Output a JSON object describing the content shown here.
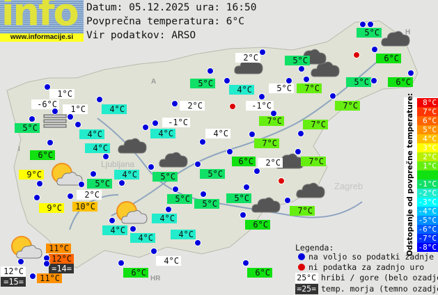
{
  "header": {
    "logo_text": "info",
    "logo_url": "www.informacije.si",
    "date_line": "Datum: 05.12.2025 ura: 16:50",
    "avg_line": "Povprečna temperatura: 6°C",
    "source_line": "Vir podatkov: ARSO"
  },
  "map_labels": {
    "zagreb": "Zagreb",
    "ljubljana": "Ljubljana",
    "hr": "HR",
    "a": "A",
    "i": "I",
    "h": "H"
  },
  "average_temperature": 6,
  "stations": [
    {
      "temp": "5°C",
      "value": 5,
      "type": "normal"
    },
    {
      "temp": "6°C",
      "value": 6,
      "type": "normal"
    },
    {
      "temp": "6°C",
      "value": 6,
      "type": "normal"
    },
    {
      "temp": "5°C",
      "value": 5,
      "type": "normal"
    },
    {
      "temp": "5°C",
      "value": 5,
      "type": "normal"
    },
    {
      "temp": "5°C",
      "value": 5,
      "type": "hill"
    },
    {
      "temp": "7°C",
      "value": 7,
      "type": "normal"
    },
    {
      "temp": "7°C",
      "value": 7,
      "type": "normal"
    },
    {
      "temp": "7°C",
      "value": 7,
      "type": "normal"
    },
    {
      "temp": "2°C",
      "value": 2,
      "type": "hill"
    },
    {
      "temp": "5°C",
      "value": 5,
      "type": "normal"
    },
    {
      "temp": "4°C",
      "value": 4,
      "type": "normal"
    },
    {
      "temp": "-1°C",
      "value": -1,
      "type": "hill"
    },
    {
      "temp": "2°C",
      "value": 2,
      "type": "hill"
    },
    {
      "temp": "-1°C",
      "value": -1,
      "type": "hill"
    },
    {
      "temp": "4°C",
      "value": 4,
      "type": "normal"
    },
    {
      "temp": "4°C",
      "value": 4,
      "type": "hill"
    },
    {
      "temp": "7°C",
      "value": 7,
      "type": "normal"
    },
    {
      "temp": "7°C",
      "value": 7,
      "type": "normal"
    },
    {
      "temp": "6°C",
      "value": 6,
      "type": "normal"
    },
    {
      "temp": "2°C",
      "value": 2,
      "type": "hill"
    },
    {
      "temp": "7°C",
      "value": 7,
      "type": "normal"
    },
    {
      "temp": "5°C",
      "value": 5,
      "type": "normal"
    },
    {
      "temp": "4°C",
      "value": 4,
      "type": "normal"
    },
    {
      "temp": "5°C",
      "value": 5,
      "type": "normal"
    },
    {
      "temp": "5°C",
      "value": 5,
      "type": "normal"
    },
    {
      "temp": "5°C",
      "value": 5,
      "type": "normal"
    },
    {
      "temp": "5°C",
      "value": 5,
      "type": "normal"
    },
    {
      "temp": "5°C",
      "value": 5,
      "type": "normal"
    },
    {
      "temp": "7°C",
      "value": 7,
      "type": "normal"
    },
    {
      "temp": "4°C",
      "value": 4,
      "type": "normal"
    },
    {
      "temp": "6°C",
      "value": 6,
      "type": "normal"
    },
    {
      "temp": "4°C",
      "value": 4,
      "type": "normal"
    },
    {
      "temp": "4°C",
      "value": 4,
      "type": "normal"
    },
    {
      "temp": "4°C",
      "value": 4,
      "type": "normal"
    },
    {
      "temp": "4°C",
      "value": 4,
      "type": "hill"
    },
    {
      "temp": "6°C",
      "value": 6,
      "type": "normal"
    },
    {
      "temp": "6°C",
      "value": 6,
      "type": "normal"
    },
    {
      "temp": "1°C",
      "value": 1,
      "type": "hill"
    },
    {
      "temp": "-6°C",
      "value": -6,
      "type": "hill"
    },
    {
      "temp": "1°C",
      "value": 1,
      "type": "hill"
    },
    {
      "temp": "5°C",
      "value": 5,
      "type": "normal"
    },
    {
      "temp": "4°C",
      "value": 4,
      "type": "normal"
    },
    {
      "temp": "4°C",
      "value": 4,
      "type": "normal"
    },
    {
      "temp": "4°C",
      "value": 4,
      "type": "normal"
    },
    {
      "temp": "6°C",
      "value": 6,
      "type": "normal"
    },
    {
      "temp": "9°C",
      "value": 9,
      "type": "normal"
    },
    {
      "temp": "9°C",
      "value": 9,
      "type": "normal"
    },
    {
      "temp": "10°C",
      "value": 10,
      "type": "normal"
    },
    {
      "temp": "2°C",
      "value": 2,
      "type": "hill"
    },
    {
      "temp": "11°C",
      "value": 11,
      "type": "normal"
    },
    {
      "temp": "12°C",
      "value": 12,
      "type": "normal"
    },
    {
      "temp": "=14=",
      "value": 14,
      "type": "sea"
    },
    {
      "temp": "12°C",
      "value": 12,
      "type": "hill"
    },
    {
      "temp": "=15=",
      "value": 15,
      "type": "sea"
    },
    {
      "temp": "11°C",
      "value": 11,
      "type": "normal"
    }
  ],
  "scale": {
    "title": "Odstopanje od povprečne temperature:",
    "rows": [
      {
        "label": "8°C",
        "color": "#f00000"
      },
      {
        "label": "7°C",
        "color": "#ff3600"
      },
      {
        "label": "6°C",
        "color": "#ff6400"
      },
      {
        "label": "5°C",
        "color": "#ff9000"
      },
      {
        "label": "4°C",
        "color": "#ffc000"
      },
      {
        "label": "3°C",
        "color": "#ffff00"
      },
      {
        "label": "2°C",
        "color": "#b8f000"
      },
      {
        "label": "1°C",
        "color": "#66ee11"
      },
      {
        "label": "",
        "color": "#11e011"
      },
      {
        "label": "-1°C",
        "color": "#11e066"
      },
      {
        "label": "-2°C",
        "color": "#22eccc"
      },
      {
        "label": "-3°C",
        "color": "#00ffff"
      },
      {
        "label": "-4°C",
        "color": "#00c4ff"
      },
      {
        "label": "-5°C",
        "color": "#0090ff"
      },
      {
        "label": "-6°C",
        "color": "#0060ff"
      },
      {
        "label": "-7°C",
        "color": "#0030ff"
      },
      {
        "label": "-8°C",
        "color": "#0000ff"
      }
    ]
  },
  "legend": {
    "title": "Legenda:",
    "available": "na voljo so podatki zadnje ure",
    "missing": "ni podatka za zadnjo uro",
    "hill_sample": "25°C",
    "hill_text": "hribi / gore (belo ozadje)",
    "sea_sample": "=25=",
    "sea_text": "temp. morja (temno ozadje)",
    "colors": {
      "available": "#0000dd",
      "missing": "#dd0000"
    }
  }
}
